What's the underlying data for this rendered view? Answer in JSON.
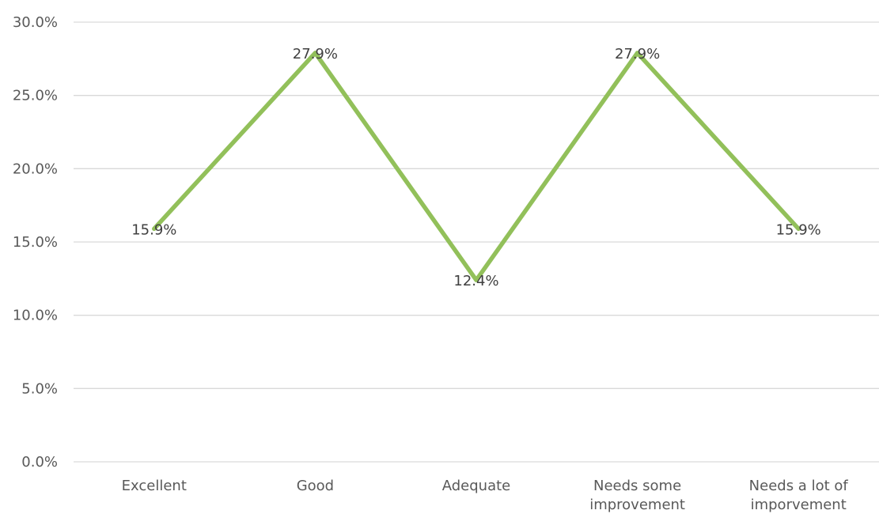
{
  "chart_data": {
    "type": "line",
    "categories": [
      [
        "Excellent"
      ],
      [
        "Good"
      ],
      [
        "Adequate"
      ],
      [
        "Needs some",
        "improvement"
      ],
      [
        "Needs a lot of",
        "imporvement"
      ]
    ],
    "values": [
      15.9,
      27.9,
      12.4,
      27.9,
      15.9
    ],
    "data_labels": [
      "15.9%",
      "27.9%",
      "12.4%",
      "27.9%",
      "15.9%"
    ],
    "y_ticks": [
      "0.0%",
      "5.0%",
      "10.0%",
      "15.0%",
      "20.0%",
      "25.0%",
      "30.0%"
    ],
    "ylim": [
      0,
      30
    ],
    "grid": true,
    "legend": "none",
    "line_color": "#92c05a",
    "grid_color": "#d9d9d9",
    "title": "",
    "xlabel": "",
    "ylabel": ""
  }
}
